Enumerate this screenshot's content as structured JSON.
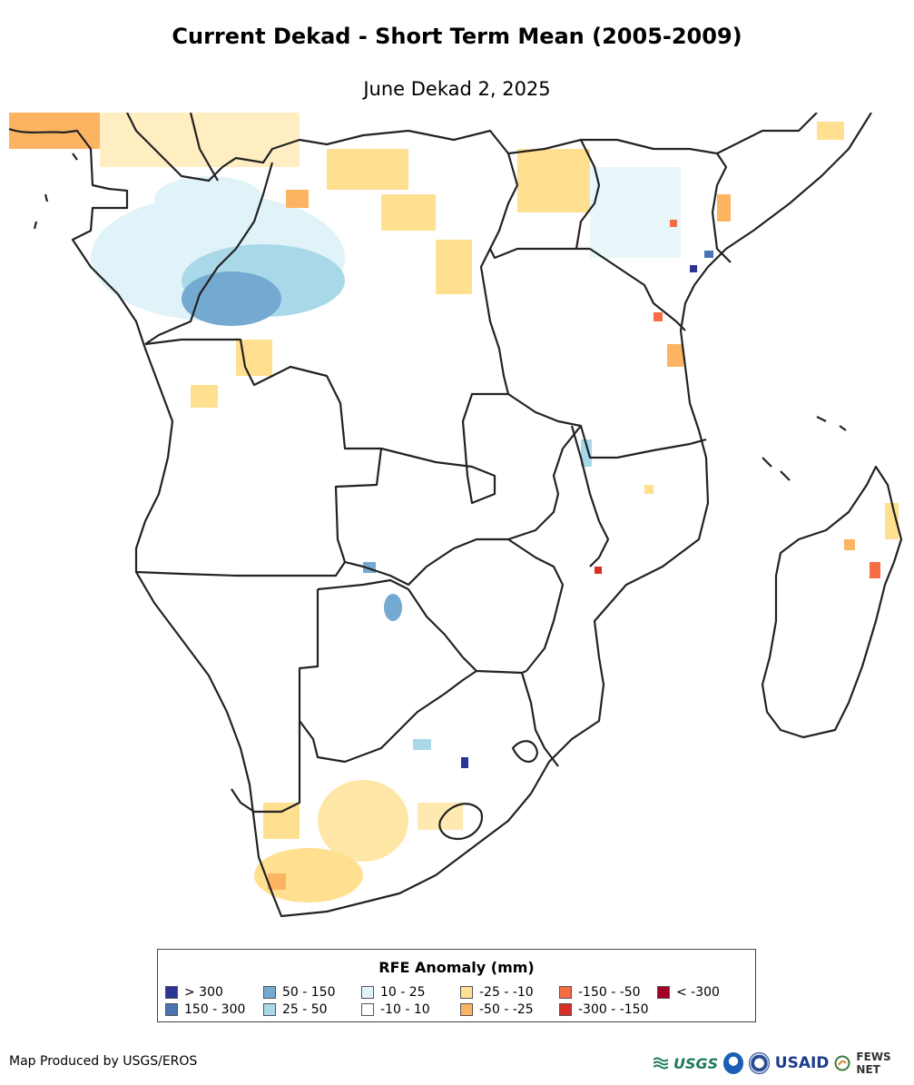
{
  "title": "Current Dekad - Short Term Mean (2005-2009)",
  "subtitle": "June Dekad 2, 2025",
  "legend": {
    "title": "RFE Anomaly (mm)",
    "items": [
      {
        "label": "> 300",
        "color": "#2b3595"
      },
      {
        "label": "150 - 300",
        "color": "#4a73b4"
      },
      {
        "label": "50 - 150",
        "color": "#74a9d2"
      },
      {
        "label": "25 - 50",
        "color": "#a9d8e8"
      },
      {
        "label": "10 - 25",
        "color": "#e0f3f8"
      },
      {
        "label": "-10 - 10",
        "color": "#ffffff"
      },
      {
        "label": "-25 - -10",
        "color": "#fee090"
      },
      {
        "label": "-50 - -25",
        "color": "#fdb462"
      },
      {
        "label": "-150 - -50",
        "color": "#f46d43"
      },
      {
        "label": "-300 - -150",
        "color": "#d73027"
      },
      {
        "label": "< -300",
        "color": "#a50026"
      }
    ]
  },
  "credit": "Map Produced by USGS/EROS",
  "logos": {
    "usgs": "USGS",
    "usaid": "USAID",
    "fews": "FEWS NET",
    "usgs_icon": "usgs-logo-icon",
    "noaa_icon": "noaa-logo-icon",
    "fews_icon": "fews-net-logo-icon"
  }
}
